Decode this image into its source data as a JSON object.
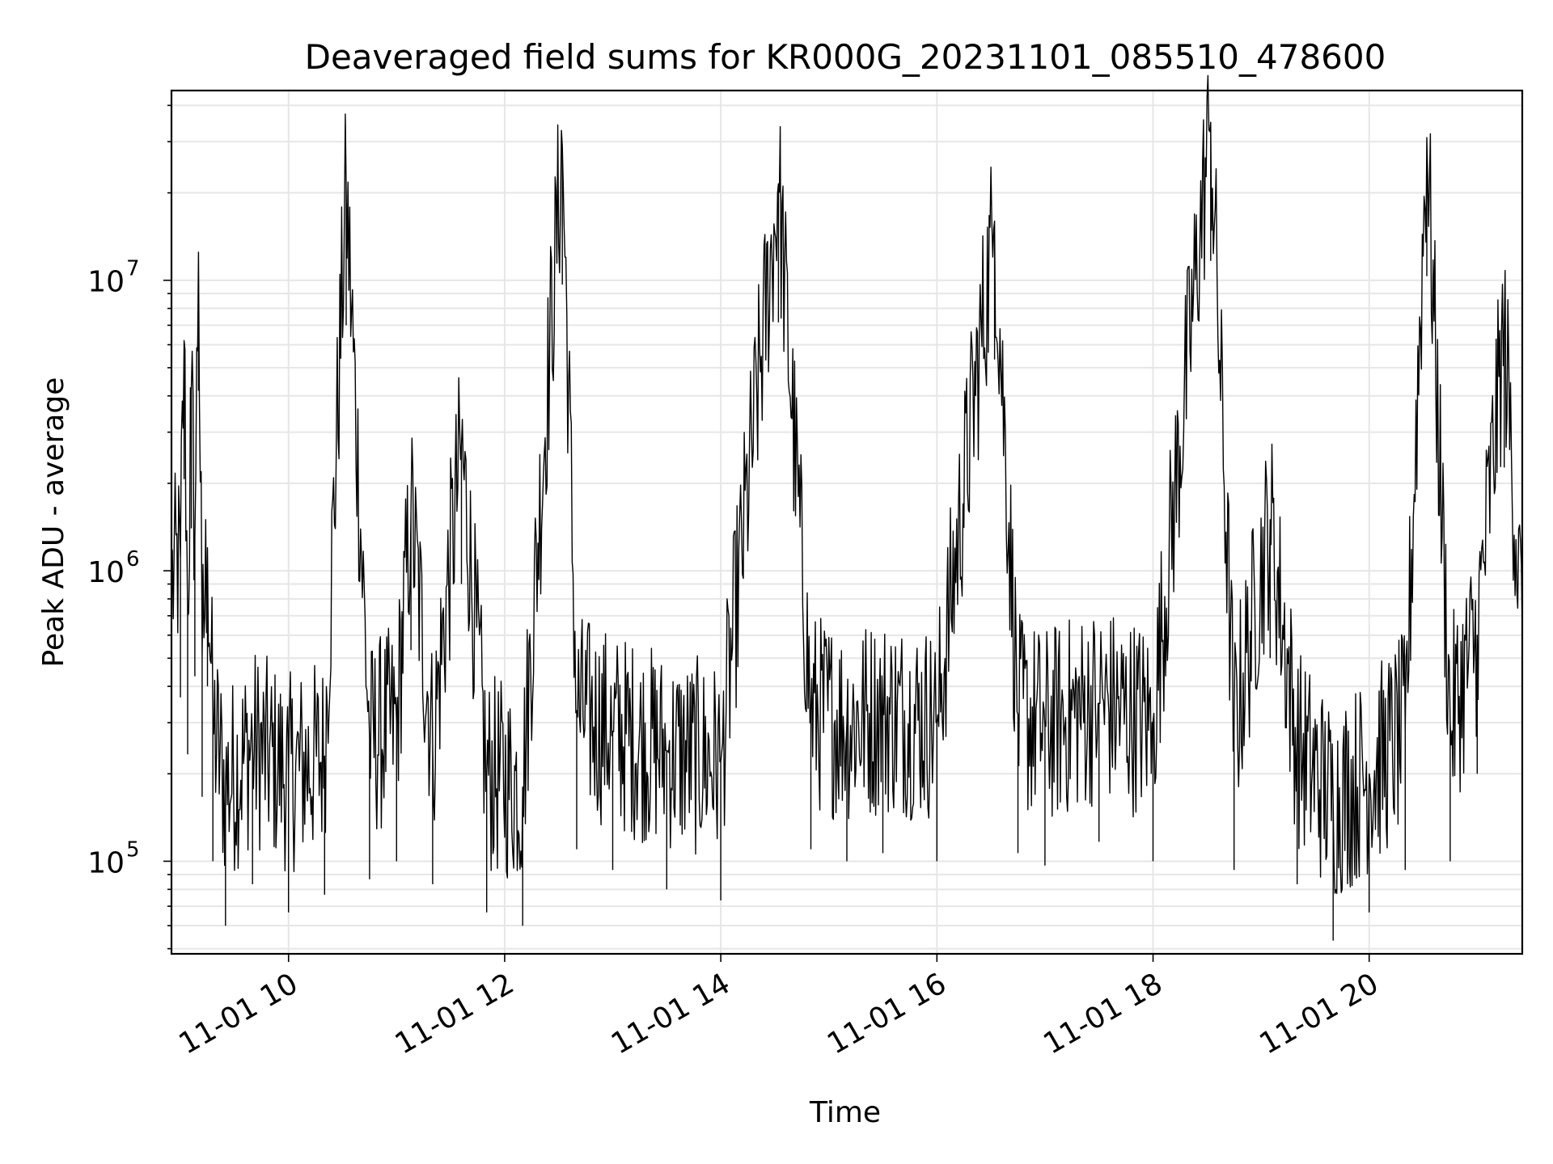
{
  "chart_data": {
    "type": "line",
    "title": "Deaveraged field sums for KR000G_20231101_085510_478600",
    "xlabel": "Time",
    "ylabel": "Peak ADU - average",
    "yscale": "log",
    "ylim": [
      48000,
      45000000
    ],
    "xlim": [
      "11-01 08:55",
      "11-01 21:25"
    ],
    "xticks": [
      {
        "time": "11-01 10:00",
        "label": "11-01 10"
      },
      {
        "time": "11-01 12:00",
        "label": "11-01 12"
      },
      {
        "time": "11-01 14:00",
        "label": "11-01 14"
      },
      {
        "time": "11-01 16:00",
        "label": "11-01 16"
      },
      {
        "time": "11-01 18:00",
        "label": "11-01 18"
      },
      {
        "time": "11-01 20:00",
        "label": "11-01 20"
      }
    ],
    "yticks": [
      {
        "value": 100000,
        "base": "10",
        "exp": "5"
      },
      {
        "value": 1000000,
        "base": "10",
        "exp": "6"
      },
      {
        "value": 10000000,
        "base": "10",
        "exp": "7"
      }
    ],
    "grid": true,
    "line_color": "#000000",
    "series": [
      {
        "points": [
          [
            "11-01 08:55",
            900000
          ],
          [
            "11-01 09:00",
            1100000
          ],
          [
            "11-01 09:02",
            6200000
          ],
          [
            "11-01 09:04",
            700000
          ],
          [
            "11-01 09:06",
            4200000
          ],
          [
            "11-01 09:08",
            1300000
          ],
          [
            "11-01 09:10",
            12500000
          ],
          [
            "11-01 09:12",
            500000
          ],
          [
            "11-01 09:15",
            1200000
          ],
          [
            "11-01 09:18",
            300000
          ],
          [
            "11-01 09:25",
            180000
          ],
          [
            "11-01 09:40",
            250000
          ],
          [
            "11-01 10:00",
            200000
          ],
          [
            "11-01 10:20",
            230000
          ],
          [
            "11-01 10:32",
            21000000
          ],
          [
            "11-01 10:45",
            260000
          ],
          [
            "11-01 11:00",
            300000
          ],
          [
            "11-01 11:08",
            1600000
          ],
          [
            "11-01 11:20",
            250000
          ],
          [
            "11-01 11:36",
            2700000
          ],
          [
            "11-01 11:50",
            200000
          ],
          [
            "11-01 12:10",
            180000
          ],
          [
            "11-01 12:32",
            29000000
          ],
          [
            "11-01 12:40",
            330000
          ],
          [
            "11-01 13:00",
            280000
          ],
          [
            "11-01 13:30",
            240000
          ],
          [
            "11-01 14:00",
            220000
          ],
          [
            "11-01 14:32",
            21500000
          ],
          [
            "11-01 14:50",
            330000
          ],
          [
            "11-01 15:10",
            300000
          ],
          [
            "11-01 15:30",
            320000
          ],
          [
            "11-01 16:00",
            300000
          ],
          [
            "11-01 16:32",
            16000000
          ],
          [
            "11-01 16:45",
            320000
          ],
          [
            "11-01 17:00",
            290000
          ],
          [
            "11-01 17:30",
            350000
          ],
          [
            "11-01 18:00",
            300000
          ],
          [
            "11-01 18:32",
            35000000
          ],
          [
            "11-01 18:45",
            280000
          ],
          [
            "11-01 19:05",
            1500000
          ],
          [
            "11-01 19:20",
            250000
          ],
          [
            "11-01 19:40",
            160000
          ],
          [
            "11-01 20:00",
            200000
          ],
          [
            "11-01 20:20",
            280000
          ],
          [
            "11-01 20:32",
            31000000
          ],
          [
            "11-01 20:45",
            300000
          ],
          [
            "11-01 21:00",
            600000
          ],
          [
            "11-01 21:15",
            6800000
          ],
          [
            "11-01 21:25",
            600000
          ]
        ]
      }
    ]
  }
}
